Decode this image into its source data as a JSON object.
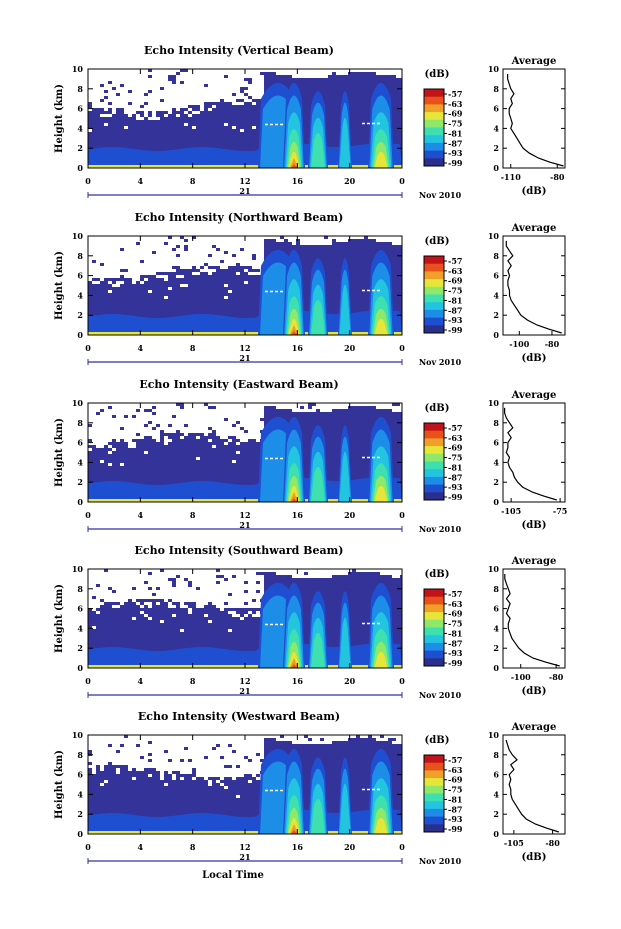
{
  "chart_data": [
    {
      "type": "heatmap",
      "title": "Echo Intensity (Vertical Beam)",
      "ylabel": "Height (km)",
      "y_ticks": [
        "0",
        "2",
        "4",
        "6",
        "8",
        "10"
      ],
      "x_ticks": [
        "0",
        "4",
        "8",
        "12",
        "16",
        "20",
        "0"
      ],
      "date_label": "21",
      "month_year": "Nov 2010",
      "colorbar": {
        "unit": "(dB)",
        "ticks": [
          "-57",
          "-63",
          "-69",
          "-75",
          "-81",
          "-87",
          "-93",
          "-99"
        ]
      },
      "profile": {
        "title": "Average",
        "xlabel": "(dB)",
        "y_ticks": [
          "0",
          "2",
          "4",
          "6",
          "8",
          "10"
        ],
        "x_ticks": [
          "-110",
          "-80"
        ],
        "xlim": [
          -115,
          -75
        ],
        "heights": [
          0.2,
          0.6,
          1,
          1.5,
          2,
          2.5,
          3,
          3.5,
          4,
          4.5,
          5,
          5.5,
          6,
          6.5,
          7,
          7.5,
          8,
          8.5,
          9,
          9.5
        ],
        "values": [
          -76,
          -85,
          -92,
          -98,
          -102,
          -104,
          -106,
          -108,
          -110,
          -109,
          -110,
          -111,
          -111,
          -109,
          -110,
          -108,
          -110,
          -111,
          -112,
          -112
        ]
      }
    },
    {
      "type": "heatmap",
      "title": "Echo Intensity (Northward Beam)",
      "ylabel": "Height (km)",
      "y_ticks": [
        "0",
        "2",
        "4",
        "6",
        "8",
        "10"
      ],
      "x_ticks": [
        "0",
        "4",
        "8",
        "12",
        "16",
        "20",
        "0"
      ],
      "date_label": "21",
      "month_year": "Nov 2010",
      "colorbar": {
        "unit": "(dB)",
        "ticks": [
          "-57",
          "-63",
          "-69",
          "-75",
          "-81",
          "-87",
          "-93",
          "-99"
        ]
      },
      "profile": {
        "title": "Average",
        "xlabel": "(dB)",
        "y_ticks": [
          "0",
          "2",
          "4",
          "6",
          "8",
          "10"
        ],
        "x_ticks": [
          "-100",
          "-80"
        ],
        "xlim": [
          -110,
          -72
        ],
        "heights": [
          0.2,
          0.6,
          1,
          1.5,
          2,
          2.5,
          3,
          3.5,
          4,
          4.5,
          5,
          5.5,
          6,
          6.5,
          7,
          7.5,
          8,
          8.5,
          9,
          9.5
        ],
        "values": [
          -74,
          -82,
          -89,
          -95,
          -99,
          -101,
          -103,
          -105,
          -106,
          -106,
          -107,
          -107,
          -106,
          -107,
          -105,
          -107,
          -104,
          -106,
          -108,
          -108
        ]
      }
    },
    {
      "type": "heatmap",
      "title": "Echo Intensity (Eastward Beam)",
      "ylabel": "Height (km)",
      "y_ticks": [
        "0",
        "2",
        "4",
        "6",
        "8",
        "10"
      ],
      "x_ticks": [
        "0",
        "4",
        "8",
        "12",
        "16",
        "20",
        "0"
      ],
      "date_label": "21",
      "month_year": "Nov 2010",
      "colorbar": {
        "unit": "(dB)",
        "ticks": [
          "-57",
          "-63",
          "-69",
          "-75",
          "-81",
          "-87",
          "-93",
          "-99"
        ]
      },
      "profile": {
        "title": "Average",
        "xlabel": "(dB)",
        "y_ticks": [
          "0",
          "2",
          "4",
          "6",
          "8",
          "10"
        ],
        "x_ticks": [
          "-105",
          "-75"
        ],
        "xlim": [
          -110,
          -72
        ],
        "heights": [
          0.2,
          0.6,
          1,
          1.5,
          2,
          2.5,
          3,
          3.5,
          4,
          4.5,
          5,
          5.5,
          6,
          6.5,
          7,
          7.5,
          8,
          8.5,
          9,
          9.5
        ],
        "values": [
          -77,
          -85,
          -92,
          -98,
          -101,
          -103,
          -104,
          -106,
          -107,
          -106,
          -108,
          -107,
          -107,
          -105,
          -107,
          -104,
          -106,
          -108,
          -109,
          -109
        ]
      }
    },
    {
      "type": "heatmap",
      "title": "Echo Intensity (Southward Beam)",
      "ylabel": "Height (km)",
      "y_ticks": [
        "0",
        "2",
        "4",
        "6",
        "8",
        "10"
      ],
      "x_ticks": [
        "0",
        "4",
        "8",
        "12",
        "16",
        "20",
        "0"
      ],
      "date_label": "21",
      "month_year": "Nov 2010",
      "colorbar": {
        "unit": "(dB)",
        "ticks": [
          "-57",
          "-63",
          "-69",
          "-75",
          "-81",
          "-87",
          "-93",
          "-99"
        ]
      },
      "profile": {
        "title": "Average",
        "xlabel": "(dB)",
        "y_ticks": [
          "0",
          "2",
          "4",
          "6",
          "8",
          "10"
        ],
        "x_ticks": [
          "-100",
          "-80"
        ],
        "xlim": [
          -110,
          -75
        ],
        "heights": [
          0.2,
          0.6,
          1,
          1.5,
          2,
          2.5,
          3,
          3.5,
          4,
          4.5,
          5,
          5.5,
          6,
          6.5,
          7,
          7.5,
          8,
          8.5,
          9,
          9.5
        ],
        "values": [
          -78,
          -86,
          -93,
          -98,
          -101,
          -103,
          -105,
          -106,
          -107,
          -107,
          -106,
          -108,
          -107,
          -106,
          -108,
          -106,
          -107,
          -108,
          -109,
          -109
        ]
      }
    },
    {
      "type": "heatmap",
      "title": "Echo Intensity (Westward Beam)",
      "ylabel": "Height (km)",
      "y_ticks": [
        "0",
        "2",
        "4",
        "6",
        "8",
        "10"
      ],
      "x_ticks": [
        "0",
        "4",
        "8",
        "12",
        "16",
        "20",
        "0"
      ],
      "date_label": "21",
      "month_year": "Nov 2010",
      "colorbar": {
        "unit": "(dB)",
        "ticks": [
          "-57",
          "-63",
          "-69",
          "-75",
          "-81",
          "-87",
          "-93",
          "-99"
        ]
      },
      "profile": {
        "title": "Average",
        "xlabel": "(dB)",
        "y_ticks": [
          "0",
          "2",
          "4",
          "6",
          "8",
          "10"
        ],
        "x_ticks": [
          "-105",
          "-80"
        ],
        "xlim": [
          -112,
          -72
        ],
        "heights": [
          0.2,
          0.6,
          1,
          1.5,
          2,
          2.5,
          3,
          3.5,
          4,
          4.5,
          5,
          5.5,
          6,
          6.5,
          7,
          7.5,
          8,
          8.5,
          9,
          9.5
        ],
        "values": [
          -76,
          -84,
          -91,
          -97,
          -100,
          -102,
          -104,
          -106,
          -107,
          -107,
          -108,
          -107,
          -108,
          -105,
          -107,
          -103,
          -106,
          -108,
          -109,
          -110
        ]
      }
    }
  ],
  "xlabel_bottom": "Local Time",
  "colors": {
    "background": "#333399",
    "palette": [
      "#2b2f8c",
      "#1f4fd1",
      "#1c8ee8",
      "#22c4e0",
      "#3ee0b0",
      "#8ee86a",
      "#e6e63a",
      "#f0a028",
      "#e8501c",
      "#c0141a"
    ]
  }
}
